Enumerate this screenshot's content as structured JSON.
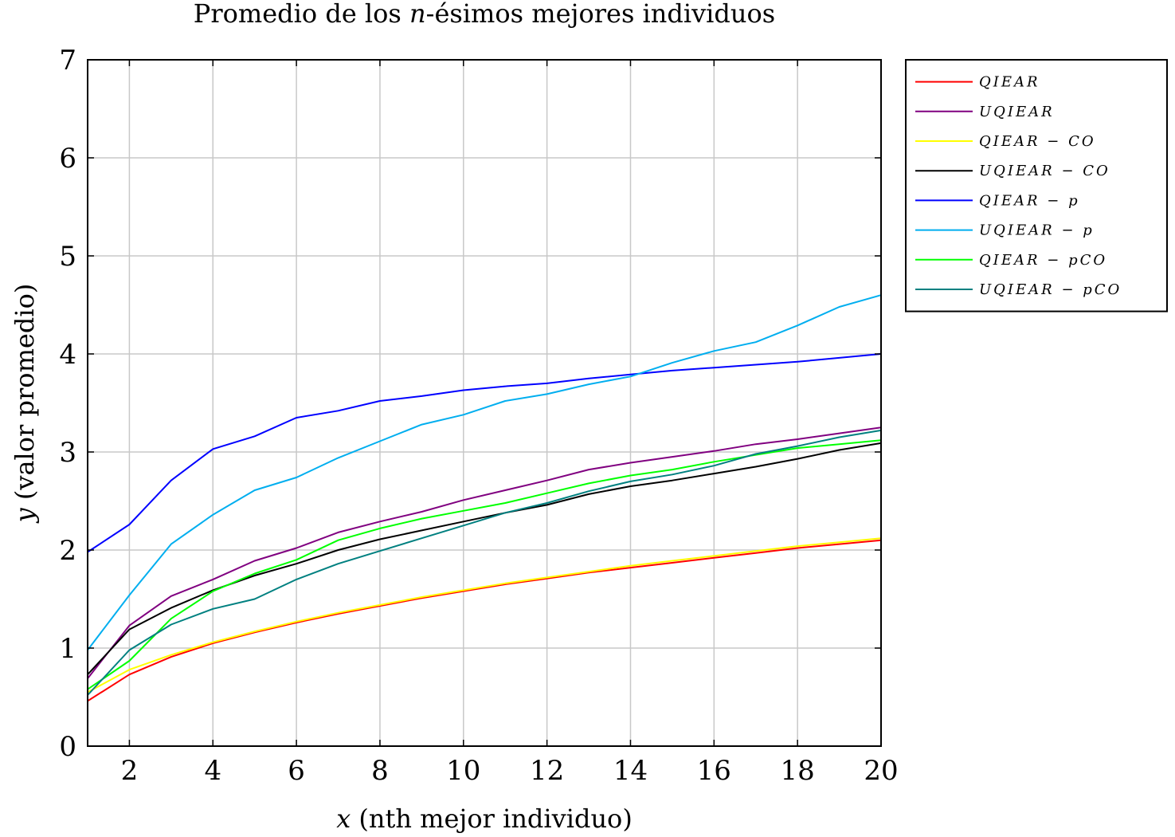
{
  "chart_data": {
    "type": "line",
    "title": "Promedio de los n-ésimos mejores individuos",
    "title_parts": {
      "before": "Promedio de los ",
      "var": "n",
      "after": "-ésimos mejores individuos"
    },
    "xlabel": "x (nth mejor individuo)",
    "xlabel_parts": {
      "var": "x",
      "rest": " (nth mejor individuo)"
    },
    "ylabel": "y (valor promedio)",
    "ylabel_parts": {
      "var": "y",
      "rest": " (valor promedio)"
    },
    "xlim": [
      1,
      20
    ],
    "ylim": [
      0,
      7
    ],
    "xticks": [
      2,
      4,
      6,
      8,
      10,
      12,
      14,
      16,
      18,
      20
    ],
    "yticks": [
      0,
      1,
      2,
      3,
      4,
      5,
      6,
      7
    ],
    "grid": true,
    "legend_position": "outside-right-top",
    "x": [
      1,
      2,
      3,
      4,
      5,
      6,
      7,
      8,
      9,
      10,
      11,
      12,
      13,
      14,
      15,
      16,
      17,
      18,
      19,
      20
    ],
    "series": [
      {
        "name": "QIEAR",
        "color": "#ff0000",
        "values": [
          0.46,
          0.73,
          0.91,
          1.05,
          1.16,
          1.26,
          1.35,
          1.43,
          1.51,
          1.58,
          1.65,
          1.71,
          1.77,
          1.82,
          1.87,
          1.92,
          1.97,
          2.02,
          2.06,
          2.1
        ]
      },
      {
        "name": "UQIEAR",
        "color": "#800080",
        "values": [
          0.69,
          1.23,
          1.53,
          1.7,
          1.89,
          2.02,
          2.18,
          2.29,
          2.39,
          2.51,
          2.61,
          2.71,
          2.82,
          2.89,
          2.95,
          3.01,
          3.08,
          3.13,
          3.19,
          3.25
        ]
      },
      {
        "name": "QIEAR − CO",
        "color": "#ffff00",
        "values": [
          0.55,
          0.78,
          0.93,
          1.06,
          1.17,
          1.27,
          1.36,
          1.44,
          1.52,
          1.59,
          1.66,
          1.72,
          1.78,
          1.84,
          1.89,
          1.94,
          1.99,
          2.04,
          2.08,
          2.12
        ]
      },
      {
        "name": "UQIEAR − CO",
        "color": "#000000",
        "values": [
          0.73,
          1.19,
          1.41,
          1.59,
          1.74,
          1.86,
          2.0,
          2.11,
          2.2,
          2.29,
          2.38,
          2.46,
          2.57,
          2.65,
          2.71,
          2.78,
          2.85,
          2.93,
          3.02,
          3.09
        ]
      },
      {
        "name": "QIEAR − p",
        "color": "#0000ff",
        "values": [
          1.98,
          2.26,
          2.71,
          3.03,
          3.16,
          3.35,
          3.42,
          3.52,
          3.57,
          3.63,
          3.67,
          3.7,
          3.75,
          3.79,
          3.83,
          3.86,
          3.89,
          3.92,
          3.96,
          4.0
        ]
      },
      {
        "name": "UQIEAR − p",
        "color": "#00aeef",
        "values": [
          0.98,
          1.54,
          2.06,
          2.36,
          2.61,
          2.74,
          2.94,
          3.11,
          3.28,
          3.38,
          3.52,
          3.59,
          3.69,
          3.77,
          3.91,
          4.03,
          4.12,
          4.29,
          4.48,
          4.6
        ]
      },
      {
        "name": "QIEAR − pCO",
        "color": "#00ff00",
        "values": [
          0.58,
          0.87,
          1.3,
          1.58,
          1.76,
          1.9,
          2.1,
          2.22,
          2.32,
          2.4,
          2.48,
          2.58,
          2.68,
          2.76,
          2.82,
          2.9,
          2.97,
          3.04,
          3.08,
          3.12
        ]
      },
      {
        "name": "UQIEAR − pCO",
        "color": "#008080",
        "values": [
          0.52,
          0.98,
          1.24,
          1.4,
          1.5,
          1.7,
          1.86,
          1.99,
          2.12,
          2.25,
          2.38,
          2.48,
          2.6,
          2.7,
          2.77,
          2.86,
          2.98,
          3.06,
          3.15,
          3.22
        ]
      }
    ]
  }
}
